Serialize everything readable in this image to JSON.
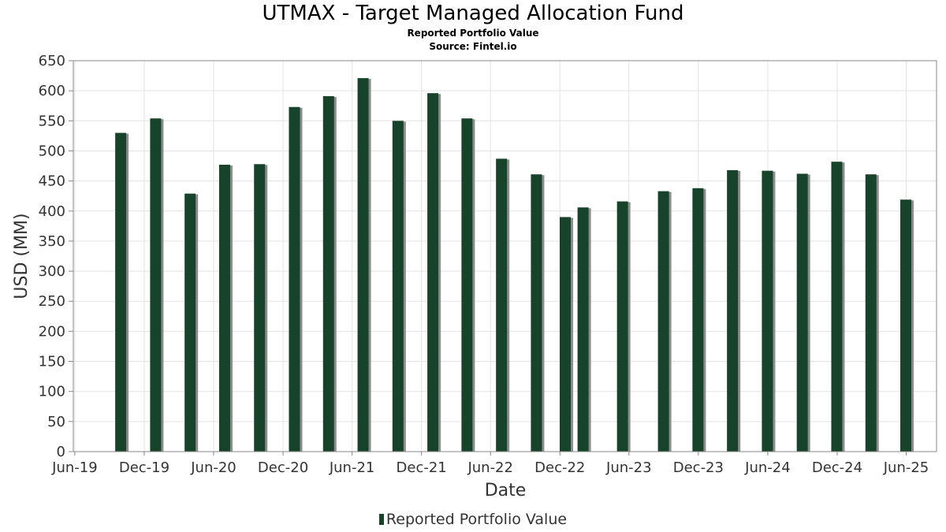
{
  "colors": {
    "bar": "#17432a",
    "bar_shadow": "#8c8c8c",
    "grid": "#e3e3e3",
    "axis": "#888888",
    "tick_text": "#333333"
  },
  "chart_data": {
    "type": "bar",
    "title": "UTMAX - Target Managed Allocation Fund",
    "subtitle": "Reported Portfolio Value",
    "source": "Source: Fintel.io",
    "xlabel": "Date",
    "ylabel": "USD (MM)",
    "ylim": [
      0,
      650
    ],
    "yticks": [
      0,
      50,
      100,
      150,
      200,
      250,
      300,
      350,
      400,
      450,
      500,
      550,
      600,
      650
    ],
    "xlim": [
      "2019-05-28",
      "2025-08-20"
    ],
    "xticks": [
      {
        "label": "Jun-19",
        "date": "2019-06-01"
      },
      {
        "label": "Dec-19",
        "date": "2019-12-01"
      },
      {
        "label": "Jun-20",
        "date": "2020-06-01"
      },
      {
        "label": "Dec-20",
        "date": "2020-12-01"
      },
      {
        "label": "Jun-21",
        "date": "2021-06-01"
      },
      {
        "label": "Dec-21",
        "date": "2021-12-01"
      },
      {
        "label": "Jun-22",
        "date": "2022-06-01"
      },
      {
        "label": "Dec-22",
        "date": "2022-12-01"
      },
      {
        "label": "Jun-23",
        "date": "2023-06-01"
      },
      {
        "label": "Dec-23",
        "date": "2023-12-01"
      },
      {
        "label": "Jun-24",
        "date": "2024-06-01"
      },
      {
        "label": "Dec-24",
        "date": "2024-12-01"
      },
      {
        "label": "Jun-25",
        "date": "2025-06-01"
      }
    ],
    "grid": true,
    "legend_position": "bottom-center",
    "series": [
      {
        "name": "Reported Portfolio Value",
        "points": [
          {
            "date": "2019-09-30",
            "value": 530
          },
          {
            "date": "2019-12-31",
            "value": 554
          },
          {
            "date": "2020-03-31",
            "value": 429
          },
          {
            "date": "2020-06-30",
            "value": 477
          },
          {
            "date": "2020-09-30",
            "value": 478
          },
          {
            "date": "2020-12-31",
            "value": 573
          },
          {
            "date": "2021-03-31",
            "value": 591
          },
          {
            "date": "2021-06-30",
            "value": 621
          },
          {
            "date": "2021-09-30",
            "value": 550
          },
          {
            "date": "2021-12-31",
            "value": 596
          },
          {
            "date": "2022-03-31",
            "value": 554
          },
          {
            "date": "2022-06-30",
            "value": 487
          },
          {
            "date": "2022-09-30",
            "value": 461
          },
          {
            "date": "2022-12-15",
            "value": 390
          },
          {
            "date": "2023-01-31",
            "value": 406
          },
          {
            "date": "2023-05-15",
            "value": 416
          },
          {
            "date": "2023-08-31",
            "value": 433
          },
          {
            "date": "2023-11-30",
            "value": 438
          },
          {
            "date": "2024-02-29",
            "value": 468
          },
          {
            "date": "2024-05-31",
            "value": 467
          },
          {
            "date": "2024-08-31",
            "value": 462
          },
          {
            "date": "2024-11-30",
            "value": 482
          },
          {
            "date": "2025-02-28",
            "value": 461
          },
          {
            "date": "2025-05-31",
            "value": 419
          }
        ]
      }
    ]
  }
}
